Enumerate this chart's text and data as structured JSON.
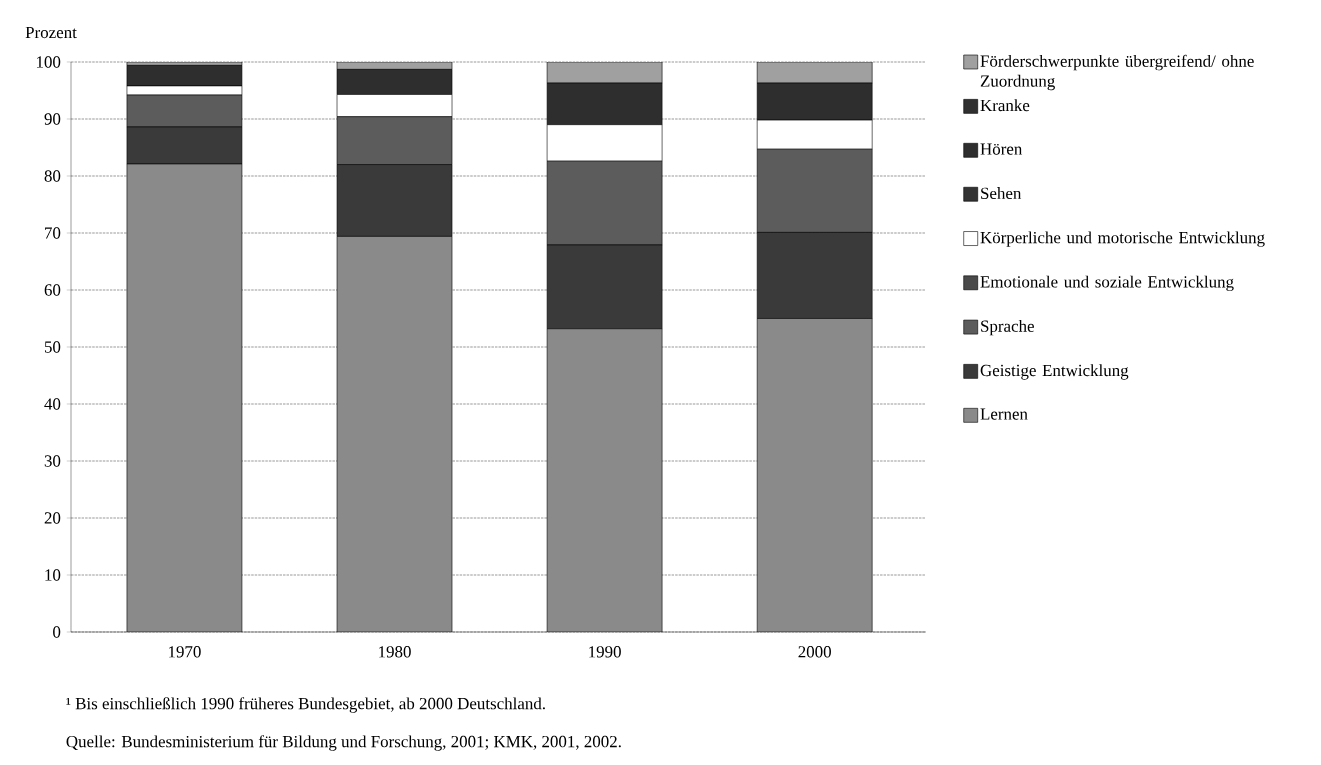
{
  "chart_data": {
    "type": "bar",
    "stacked": true,
    "ylabel": "Prozent",
    "categories": [
      "1970",
      "1980",
      "1990",
      "2000"
    ],
    "series": [
      {
        "name": "Lernen",
        "color": "#8a8a8a",
        "values": [
          82.1,
          69.4,
          53.2,
          55.0
        ]
      },
      {
        "name": "Geistige Entwicklung",
        "color": "#3a3a3a",
        "values": [
          6.5,
          12.6,
          14.7,
          15.1
        ]
      },
      {
        "name": "Sprache",
        "color": "#5c5c5c",
        "values": [
          5.6,
          8.4,
          14.7,
          14.6
        ]
      },
      {
        "name": "Emotionale und soziale Entwicklung",
        "color": "#4a4a4a",
        "values": [
          null,
          null,
          null,
          null
        ]
      },
      {
        "name": "Körperliche und motorische Entwicklung",
        "color": "#ffffff",
        "values": [
          1.6,
          3.9,
          6.4,
          5.1
        ]
      },
      {
        "name": "Sehen",
        "color": "#333333",
        "values": [
          null,
          null,
          null,
          null
        ]
      },
      {
        "name": "Hören",
        "color": "#2e2e2e",
        "values": [
          3.6,
          4.4,
          7.3,
          6.5
        ]
      },
      {
        "name": "Kranke",
        "color": "#303030",
        "values": [
          null,
          null,
          null,
          null
        ]
      },
      {
        "name": "Förderschwerpunkte übergreifend/ ohne Zuordnung",
        "color": "#a0a0a0",
        "values": [
          0.6,
          1.3,
          3.7,
          3.7
        ]
      }
    ],
    "ylim": [
      0,
      100
    ],
    "yticks": [
      0,
      10,
      20,
      30,
      40,
      50,
      60,
      70,
      80,
      90,
      100
    ],
    "grid": "y",
    "legend": "right",
    "annotations": [
      "¹ Bis einschließlich 1990 früheres Bundesgebiet, ab 2000 Deutschland.",
      "Quelle: Bundesministerium für Bildung und Forschung, 2001; KMK, 2001, 2002."
    ]
  }
}
